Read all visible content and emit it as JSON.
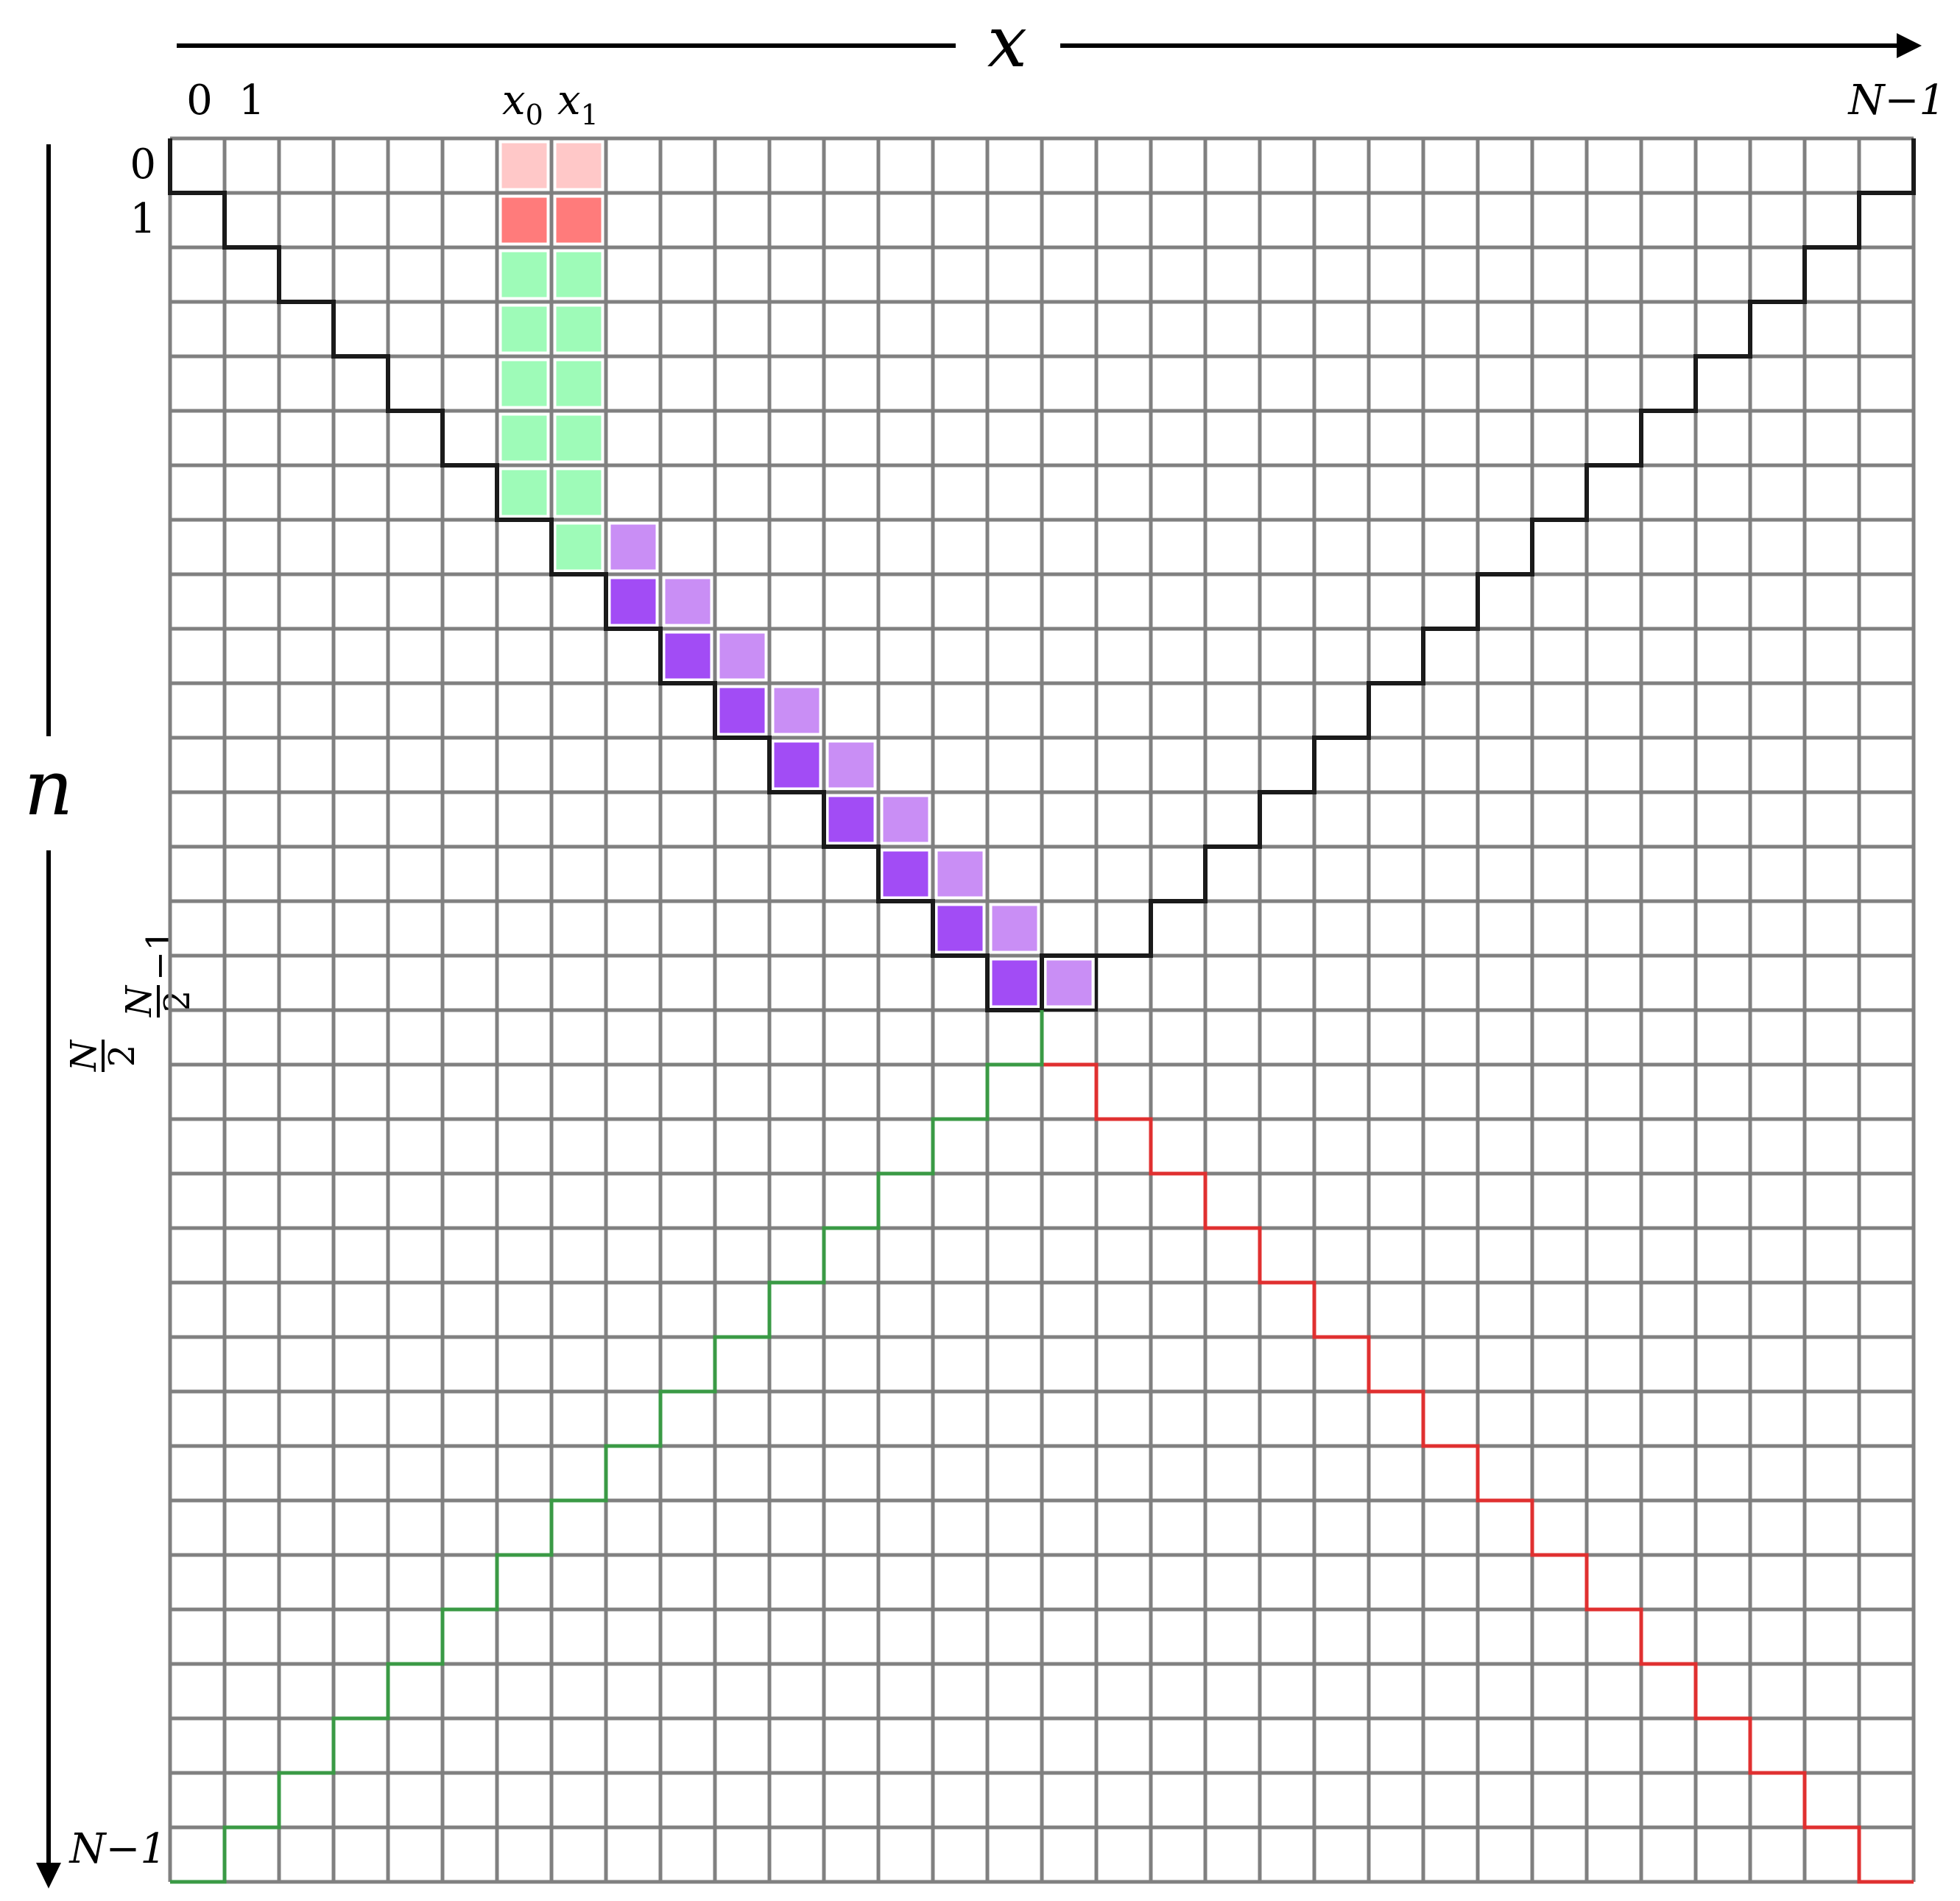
{
  "axes": {
    "x_label": "x",
    "n_label": "n"
  },
  "column_labels": {
    "first": "0",
    "second": "1",
    "x0_base": "x",
    "x0_sub": "0",
    "x1_base": "x",
    "x1_sub": "1",
    "last": "N−1"
  },
  "row_labels": {
    "first": "0",
    "second": "1",
    "half_frac_num": "N",
    "half_frac_den": "2",
    "half_minus_one_num": "N",
    "half_minus_one_den": "2",
    "half_minus_one_suffix": "−1",
    "last": "N−1"
  },
  "grid": {
    "columns": 32,
    "rows": 32
  },
  "colors": {
    "grid_line": "#808080",
    "black_staircase": "#1a1a1a",
    "green_staircase": "#3a9a45",
    "red_staircase": "#e03030",
    "cell_light_red": "#ffc8c8",
    "cell_red": "#ff7b7b",
    "cell_green": "#9efbb8",
    "cell_dark_purple": "#a24cf5",
    "cell_light_purple": "#c98ef5"
  },
  "highlights": {
    "light_red": [
      [
        0,
        6
      ],
      [
        0,
        7
      ]
    ],
    "red": [
      [
        1,
        6
      ],
      [
        1,
        7
      ]
    ],
    "green": [
      [
        2,
        6
      ],
      [
        2,
        7
      ],
      [
        3,
        6
      ],
      [
        3,
        7
      ],
      [
        4,
        6
      ],
      [
        4,
        7
      ],
      [
        5,
        6
      ],
      [
        5,
        7
      ],
      [
        6,
        6
      ],
      [
        6,
        7
      ],
      [
        7,
        7
      ]
    ],
    "dark_purple": [
      [
        8,
        8
      ],
      [
        9,
        9
      ],
      [
        10,
        10
      ],
      [
        11,
        11
      ],
      [
        12,
        12
      ],
      [
        13,
        13
      ],
      [
        14,
        14
      ],
      [
        15,
        15
      ]
    ],
    "light_purple": [
      [
        7,
        8
      ],
      [
        8,
        9
      ],
      [
        9,
        10
      ],
      [
        10,
        11
      ],
      [
        11,
        12
      ],
      [
        12,
        13
      ],
      [
        13,
        14
      ],
      [
        14,
        15
      ],
      [
        15,
        16
      ]
    ]
  }
}
